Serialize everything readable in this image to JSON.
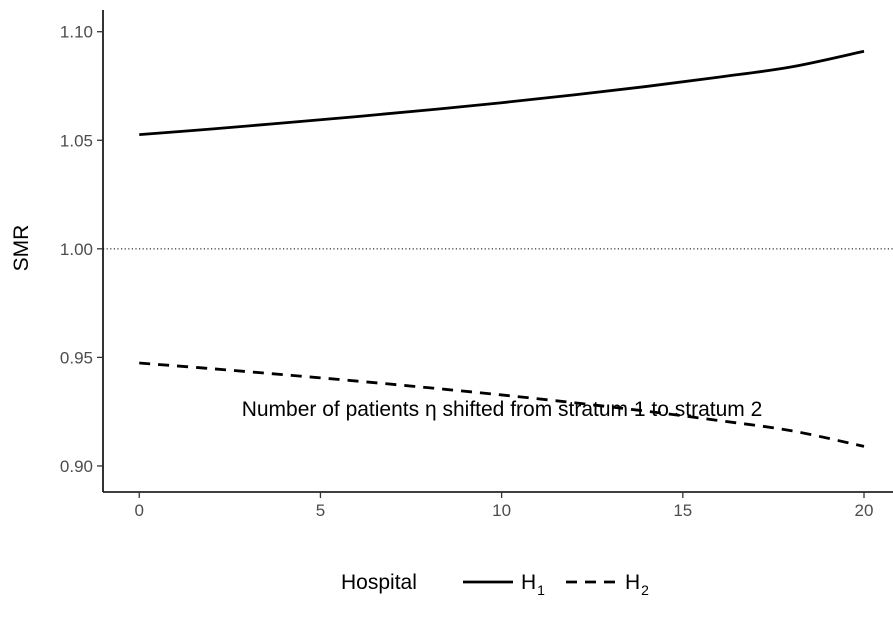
{
  "chart_data": {
    "type": "line",
    "xlabel_prefix": "Number of patients ",
    "xlabel_symbol": "η",
    "xlabel_suffix": " shifted from stratum 1 to stratum 2",
    "ylabel": "SMR",
    "xlim": [
      -1,
      20.8
    ],
    "ylim": [
      0.888,
      1.11
    ],
    "x_ticks": [
      0,
      5,
      10,
      15,
      20
    ],
    "x_tick_labels": [
      "0",
      "5",
      "10",
      "15",
      "20"
    ],
    "y_ticks": [
      0.9,
      0.95,
      1.0,
      1.05,
      1.1
    ],
    "y_tick_labels": [
      "0.90",
      "0.95",
      "1.00",
      "1.05",
      "1.10"
    ],
    "reference_line": {
      "y": 1.0,
      "style": "dotted"
    },
    "grid": false,
    "legend": {
      "title": "Hospital",
      "position": "bottom",
      "entries": [
        {
          "base": "H",
          "subscript": "1",
          "linestyle": "solid"
        },
        {
          "base": "H",
          "subscript": "2",
          "linestyle": "dashed"
        }
      ]
    },
    "x": [
      0,
      2,
      4,
      6,
      8,
      10,
      12,
      14,
      16,
      18,
      20
    ],
    "series": [
      {
        "legend_index": 0,
        "linestyle": "solid",
        "color": "#000000",
        "values": [
          1.0526,
          1.0552,
          1.058,
          1.0609,
          1.064,
          1.0673,
          1.0709,
          1.0748,
          1.0791,
          1.0838,
          1.091
        ]
      },
      {
        "legend_index": 1,
        "linestyle": "dashed",
        "color": "#000000",
        "values": [
          0.9474,
          0.9448,
          0.942,
          0.9391,
          0.936,
          0.9327,
          0.9291,
          0.9252,
          0.9209,
          0.9162,
          0.909
        ]
      }
    ]
  }
}
